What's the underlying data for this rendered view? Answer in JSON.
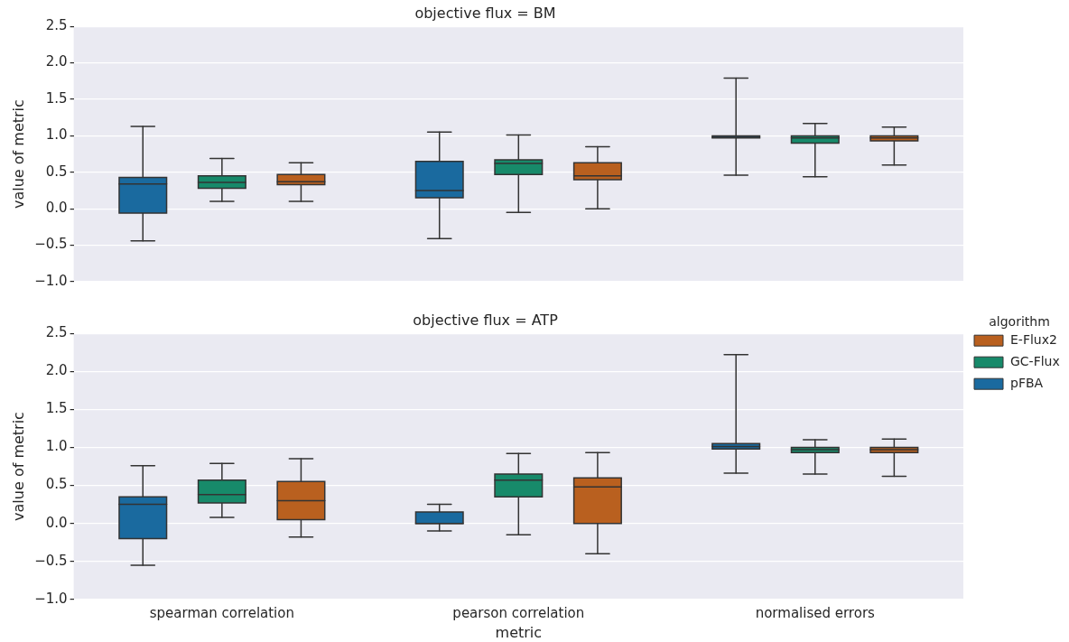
{
  "chart_data": [
    {
      "type": "box",
      "title": "objective flux = BM",
      "ylabel": "value of metric",
      "categories": [
        null,
        null,
        null
      ],
      "series": [
        {
          "color": "#1a6a9f",
          "boxes": [
            {
              "low": -0.44,
              "q1": -0.06,
              "median": 0.34,
              "q3": 0.43,
              "high": 1.13
            },
            {
              "low": -0.41,
              "q1": 0.15,
              "median": 0.25,
              "q3": 0.65,
              "high": 1.05
            },
            {
              "low": 0.46,
              "q1": 0.97,
              "median": 0.98,
              "q3": 1.0,
              "high": 1.79
            }
          ]
        },
        {
          "color": "#178a6a",
          "boxes": [
            {
              "low": 0.1,
              "q1": 0.28,
              "median": 0.36,
              "q3": 0.45,
              "high": 0.69
            },
            {
              "low": -0.05,
              "q1": 0.47,
              "median": 0.62,
              "q3": 0.67,
              "high": 1.01
            },
            {
              "low": 0.44,
              "q1": 0.9,
              "median": 0.97,
              "q3": 1.0,
              "high": 1.17
            }
          ]
        },
        {
          "color": "#b9601f",
          "boxes": [
            {
              "low": 0.1,
              "q1": 0.33,
              "median": 0.37,
              "q3": 0.47,
              "high": 0.63
            },
            {
              "low": 0.0,
              "q1": 0.4,
              "median": 0.45,
              "q3": 0.63,
              "high": 0.85
            },
            {
              "low": 0.6,
              "q1": 0.93,
              "median": 0.97,
              "q3": 1.0,
              "high": 1.12
            }
          ]
        }
      ],
      "ylim": [
        -1.0,
        2.5
      ],
      "yticks": [
        {
          "value": -1.0,
          "label": "−1.0"
        },
        {
          "value": -0.5,
          "label": "−0.5"
        },
        {
          "value": 0.0,
          "label": "0.0"
        },
        {
          "value": 0.5,
          "label": "0.5"
        },
        {
          "value": 1.0,
          "label": "1.0"
        },
        {
          "value": 1.5,
          "label": "1.5"
        },
        {
          "value": 2.0,
          "label": "2.0"
        },
        {
          "value": 2.5,
          "label": "2.5"
        }
      ],
      "grid": "y"
    },
    {
      "type": "box",
      "title": "objective flux = ATP",
      "xlabel": "metric",
      "ylabel": "value of metric",
      "legend_title": "algorithm",
      "legend": "right",
      "categories": [
        "spearman correlation",
        "pearson correlation",
        "normalised errors"
      ],
      "series": [
        {
          "name": "pFBA",
          "color": "#1a6a9f",
          "boxes": [
            {
              "low": -0.55,
              "q1": -0.2,
              "median": 0.25,
              "q3": 0.35,
              "high": 0.76
            },
            {
              "low": -0.1,
              "q1": 0.0,
              "median": 0.0,
              "q3": 0.15,
              "high": 0.25
            },
            {
              "low": 0.66,
              "q1": 0.98,
              "median": 1.01,
              "q3": 1.05,
              "high": 2.22
            }
          ]
        },
        {
          "name": "GC-Flux",
          "color": "#178a6a",
          "boxes": [
            {
              "low": 0.08,
              "q1": 0.27,
              "median": 0.38,
              "q3": 0.57,
              "high": 0.79
            },
            {
              "low": -0.15,
              "q1": 0.35,
              "median": 0.57,
              "q3": 0.65,
              "high": 0.92
            },
            {
              "low": 0.65,
              "q1": 0.93,
              "median": 0.97,
              "q3": 1.0,
              "high": 1.1
            }
          ]
        },
        {
          "name": "E-Flux2",
          "color": "#b9601f",
          "boxes": [
            {
              "low": -0.18,
              "q1": 0.05,
              "median": 0.3,
              "q3": 0.55,
              "high": 0.85
            },
            {
              "low": -0.4,
              "q1": 0.0,
              "median": 0.48,
              "q3": 0.6,
              "high": 0.93
            },
            {
              "low": 0.62,
              "q1": 0.93,
              "median": 0.97,
              "q3": 1.0,
              "high": 1.11
            }
          ]
        }
      ],
      "ylim": [
        -1.0,
        2.5
      ],
      "yticks": [
        {
          "value": -1.0,
          "label": "−1.0"
        },
        {
          "value": -0.5,
          "label": "−0.5"
        },
        {
          "value": 0.0,
          "label": "0.0"
        },
        {
          "value": 0.5,
          "label": "0.5"
        },
        {
          "value": 1.0,
          "label": "1.0"
        },
        {
          "value": 1.5,
          "label": "1.5"
        },
        {
          "value": 2.0,
          "label": "2.0"
        },
        {
          "value": 2.5,
          "label": "2.5"
        }
      ],
      "grid": "y"
    }
  ]
}
